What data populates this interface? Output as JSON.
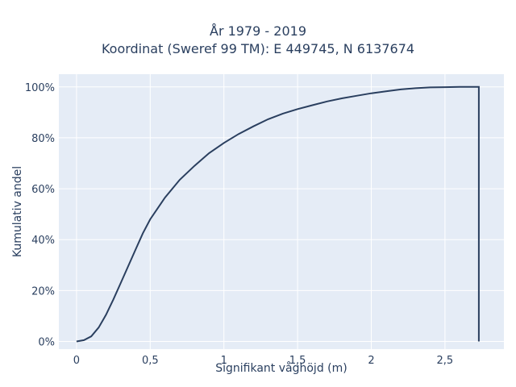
{
  "chart_data": {
    "type": "line",
    "title": [
      "År 1979 - 2019",
      "Koordinat (Sweref 99 TM): E 449745, N 6137674"
    ],
    "xlabel": "Signifikant våghöjd (m)",
    "ylabel": "Kumulativ andel",
    "xlim": [
      -0.12,
      2.9
    ],
    "ylim": [
      -0.03,
      1.05
    ],
    "x_ticks": [
      0,
      0.5,
      1,
      1.5,
      2,
      2.5
    ],
    "x_tick_labels": [
      "0",
      "0,5",
      "1",
      "1,5",
      "2",
      "2,5"
    ],
    "y_ticks": [
      0,
      0.2,
      0.4,
      0.6,
      0.8,
      1.0
    ],
    "y_tick_labels": [
      "0%",
      "20%",
      "40%",
      "60%",
      "80%",
      "100%"
    ],
    "grid": true,
    "legend": "none",
    "colors": {
      "line": "#2a3f5f",
      "plot_bg": "#e5ecf6",
      "grid": "#ffffff",
      "text": "#2a3f5f"
    },
    "series": [
      {
        "x": [
          0,
          0.05,
          0.1,
          0.15,
          0.2,
          0.25,
          0.3,
          0.35,
          0.4,
          0.45,
          0.5,
          0.6,
          0.7,
          0.8,
          0.9,
          1.0,
          1.1,
          1.2,
          1.3,
          1.4,
          1.5,
          1.6,
          1.7,
          1.8,
          1.9,
          2.0,
          2.1,
          2.2,
          2.3,
          2.4,
          2.5,
          2.6,
          2.73,
          2.73
        ],
        "y": [
          0,
          0.005,
          0.02,
          0.055,
          0.105,
          0.165,
          0.23,
          0.295,
          0.36,
          0.425,
          0.48,
          0.565,
          0.635,
          0.69,
          0.74,
          0.78,
          0.815,
          0.845,
          0.873,
          0.895,
          0.913,
          0.928,
          0.943,
          0.955,
          0.965,
          0.975,
          0.983,
          0.99,
          0.995,
          0.998,
          0.999,
          1.0,
          1.0,
          0
        ]
      }
    ]
  }
}
